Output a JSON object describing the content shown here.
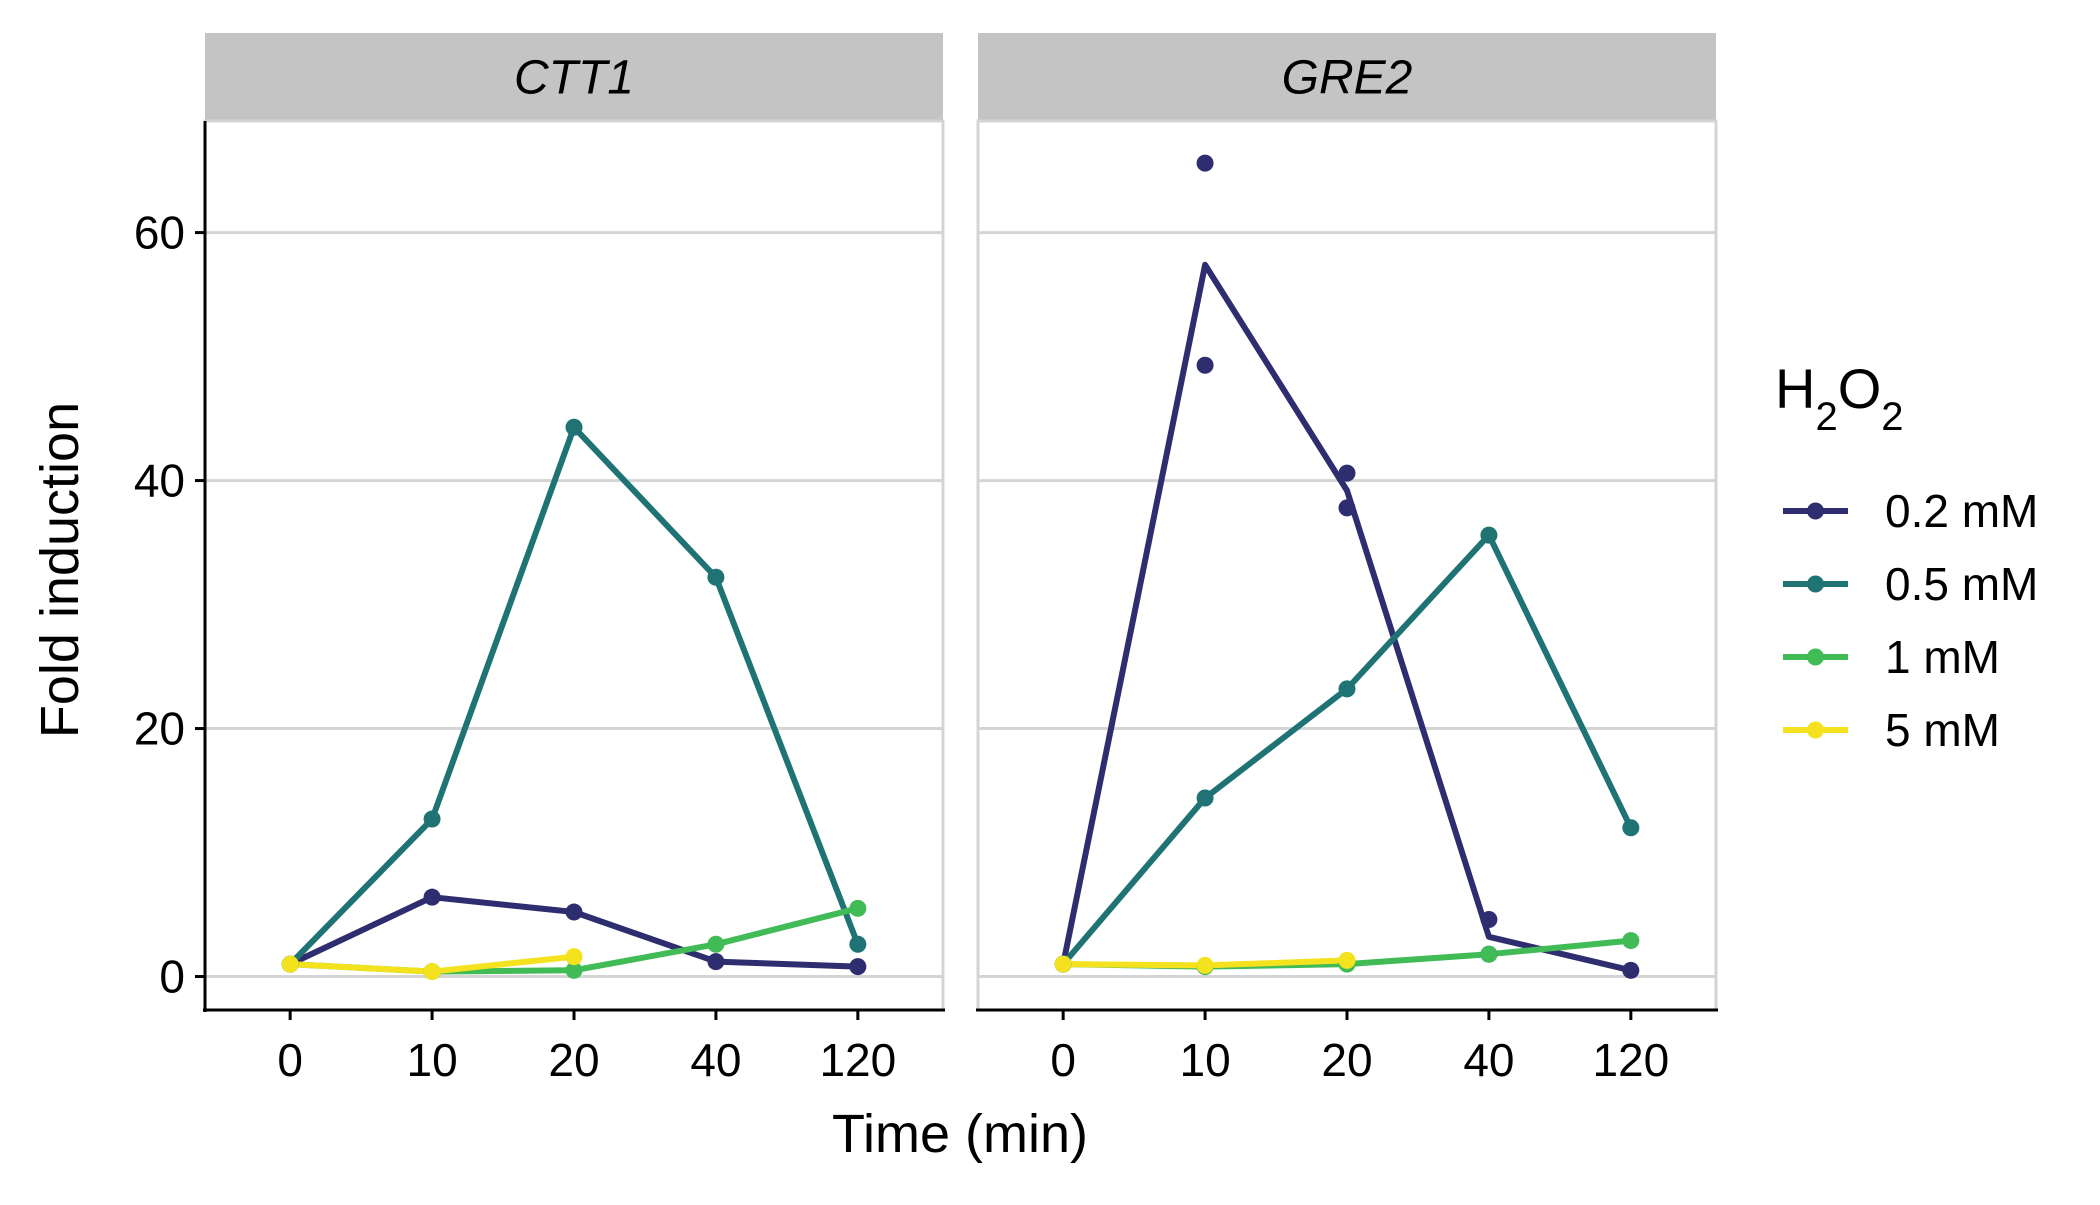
{
  "chart_data": {
    "type": "line",
    "x_type": "categorical",
    "categories": [
      "0",
      "10",
      "20",
      "40",
      "120"
    ],
    "xlabel": "Time (min)",
    "ylabel": "Fold induction",
    "ylim": [
      -2.7,
      69
    ],
    "y_ticks": [
      0,
      20,
      40,
      60
    ],
    "y_tick_labels": [
      "0",
      "20",
      "40",
      "60"
    ],
    "grid": "horizontal major lines only",
    "legend": {
      "title_main": "H",
      "title_sub1": "2",
      "title_mid": "O",
      "title_sub2": "2",
      "position": "right",
      "entries": [
        "0.2 mM",
        "0.5 mM",
        "1 mM",
        "5 mM"
      ]
    },
    "colors": {
      "0.2 mM": "#2e2d6f",
      "0.5 mM": "#1f7375",
      "1 mM": "#40bb55",
      "5 mM": "#f3e21d"
    },
    "panels": [
      {
        "title": "CTT1",
        "series": [
          {
            "name": "0.2 mM",
            "line": [
              1.0,
              6.4,
              5.2,
              1.2,
              0.8
            ],
            "points": [
              {
                "x": "0",
                "y": 1.0
              },
              {
                "x": "10",
                "y": 6.4
              },
              {
                "x": "20",
                "y": 5.2
              },
              {
                "x": "40",
                "y": 1.2
              },
              {
                "x": "120",
                "y": 0.8
              }
            ]
          },
          {
            "name": "0.5 mM",
            "line": [
              1.0,
              12.7,
              44.3,
              32.2,
              2.6
            ],
            "points": [
              {
                "x": "0",
                "y": 1.0
              },
              {
                "x": "10",
                "y": 12.7
              },
              {
                "x": "20",
                "y": 44.3
              },
              {
                "x": "40",
                "y": 32.2
              },
              {
                "x": "120",
                "y": 2.6
              }
            ]
          },
          {
            "name": "1 mM",
            "line": [
              1.0,
              0.4,
              0.5,
              2.6,
              5.5
            ],
            "points": [
              {
                "x": "0",
                "y": 1.0
              },
              {
                "x": "10",
                "y": 0.4
              },
              {
                "x": "20",
                "y": 0.5
              },
              {
                "x": "40",
                "y": 2.6
              },
              {
                "x": "120",
                "y": 5.5
              }
            ]
          },
          {
            "name": "5 mM",
            "line": [
              1.0,
              0.4,
              1.6,
              null,
              null
            ],
            "points": [
              {
                "x": "0",
                "y": 1.0
              },
              {
                "x": "10",
                "y": 0.4
              },
              {
                "x": "20",
                "y": 1.6
              }
            ]
          }
        ]
      },
      {
        "title": "GRE2",
        "series": [
          {
            "name": "0.2 mM",
            "line": [
              1.0,
              57.4,
              39.2,
              3.2,
              0.5
            ],
            "points": [
              {
                "x": "0",
                "y": 1.0
              },
              {
                "x": "10",
                "y": 65.6
              },
              {
                "x": "10",
                "y": 49.3
              },
              {
                "x": "20",
                "y": 40.6
              },
              {
                "x": "20",
                "y": 37.8
              },
              {
                "x": "40",
                "y": 4.6
              },
              {
                "x": "40",
                "y": 1.8
              },
              {
                "x": "120",
                "y": 0.5
              }
            ]
          },
          {
            "name": "0.5 mM",
            "line": [
              1.0,
              14.4,
              23.2,
              35.6,
              12.0
            ],
            "points": [
              {
                "x": "0",
                "y": 1.0
              },
              {
                "x": "10",
                "y": 14.4
              },
              {
                "x": "20",
                "y": 23.2
              },
              {
                "x": "40",
                "y": 35.6
              },
              {
                "x": "120",
                "y": 12.0
              }
            ]
          },
          {
            "name": "1 mM",
            "line": [
              1.0,
              0.8,
              1.0,
              1.8,
              2.9
            ],
            "points": [
              {
                "x": "0",
                "y": 1.0
              },
              {
                "x": "10",
                "y": 0.8
              },
              {
                "x": "20",
                "y": 1.0
              },
              {
                "x": "40",
                "y": 1.8
              },
              {
                "x": "120",
                "y": 2.9
              }
            ]
          },
          {
            "name": "5 mM",
            "line": [
              1.0,
              0.9,
              1.3,
              null,
              null
            ],
            "points": [
              {
                "x": "0",
                "y": 1.0
              },
              {
                "x": "10",
                "y": 0.9
              },
              {
                "x": "20",
                "y": 1.3
              }
            ]
          }
        ]
      }
    ]
  }
}
